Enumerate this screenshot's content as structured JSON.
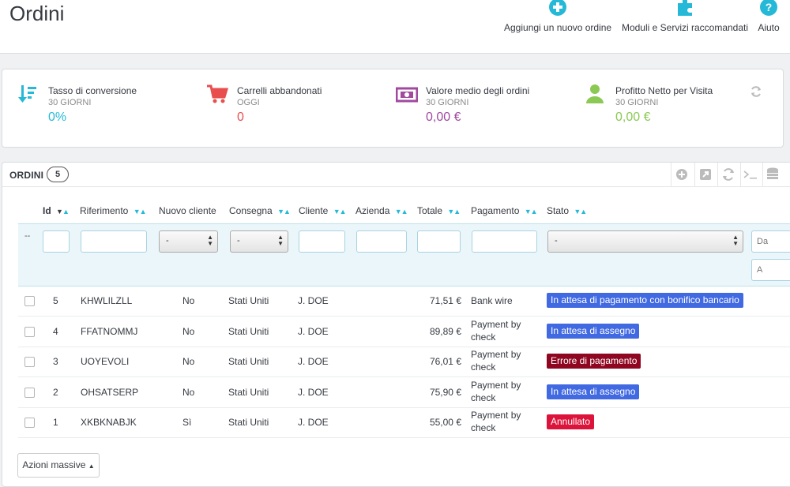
{
  "header": {
    "title": "Ordini",
    "actions": [
      {
        "label": "Aggiungi un nuovo ordine",
        "icon": "plus-circle-icon"
      },
      {
        "label": "Moduli e Servizi raccomandati",
        "icon": "puzzle-icon"
      },
      {
        "label": "Aiuto",
        "icon": "help-icon"
      }
    ]
  },
  "kpis": [
    {
      "title": "Tasso di conversione",
      "subtitle": "30 giorni",
      "value": "0%",
      "color": "#25b9d7",
      "icon": "sort-amount-icon"
    },
    {
      "title": "Carrelli abbandonati",
      "subtitle": "oggi",
      "value": "0",
      "color": "#e84e4e",
      "icon": "cart-icon"
    },
    {
      "title": "Valore medio degli ordini",
      "subtitle": "30 giorni",
      "value": "0,00 €",
      "color": "#a0499f",
      "icon": "money-icon"
    },
    {
      "title": "Profitto Netto per Visita",
      "subtitle": "30 giorni",
      "value": "0,00 €",
      "color": "#8bc954",
      "icon": "user-icon"
    }
  ],
  "orders_panel": {
    "title": "ORDINI",
    "count": "5",
    "columns": [
      "Id",
      "Riferimento",
      "Nuovo cliente",
      "Consegna",
      "Cliente",
      "Azienda",
      "Totale",
      "Pagamento",
      "Stato"
    ],
    "filters": {
      "new_customer_value": "-",
      "delivery_value": "-",
      "status_value": "-",
      "date_from_placeholder": "Da",
      "date_to_placeholder": "A",
      "bulk_marker": "--"
    },
    "rows": [
      {
        "id": "5",
        "ref": "KHWLILZLL",
        "new_customer": "No",
        "delivery": "Stati Uniti",
        "customer": "J. DOE",
        "total": "71,51 €",
        "payment": "Bank wire",
        "payment2": "",
        "status": "In attesa di pagamento con bonifico bancario",
        "status_color": "#4169e1"
      },
      {
        "id": "4",
        "ref": "FFATNOMMJ",
        "new_customer": "No",
        "delivery": "Stati Uniti",
        "customer": "J. DOE",
        "total": "89,89 €",
        "payment": "Payment by",
        "payment2": "check",
        "status": "In attesa di assegno",
        "status_color": "#4169e1"
      },
      {
        "id": "3",
        "ref": "UOYEVOLI",
        "new_customer": "No",
        "delivery": "Stati Uniti",
        "customer": "J. DOE",
        "total": "76,01 €",
        "payment": "Payment by",
        "payment2": "check",
        "status": "Errore di pagamento",
        "status_color": "#8f0621"
      },
      {
        "id": "2",
        "ref": "OHSATSERP",
        "new_customer": "No",
        "delivery": "Stati Uniti",
        "customer": "J. DOE",
        "total": "75,90 €",
        "payment": "Payment by",
        "payment2": "check",
        "status": "In attesa di assegno",
        "status_color": "#4169e1"
      },
      {
        "id": "1",
        "ref": "XKBKNABJK",
        "new_customer": "Sì",
        "delivery": "Stati Uniti",
        "customer": "J. DOE",
        "total": "55,00 €",
        "payment": "Payment by",
        "payment2": "check",
        "status": "Annullato",
        "status_color": "#dc143c"
      }
    ],
    "bulk_actions_label": "Azioni massive"
  }
}
